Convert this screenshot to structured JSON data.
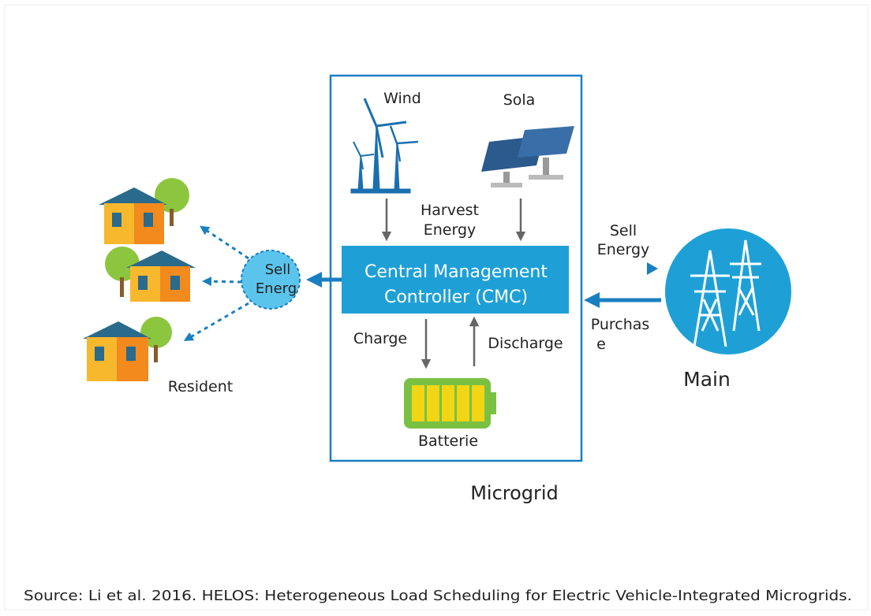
{
  "diagram": {
    "wind": "Wind",
    "solar": "Sola",
    "harvest": [
      "Harvest",
      "Energy"
    ],
    "cmc": [
      "Central Management",
      "Controller (CMC)"
    ],
    "charge": "Charge",
    "discharge": "Discharge",
    "battery": "Batterie",
    "microgrid": "Microgrid",
    "sell_residents": [
      "Sell",
      "Energ"
    ],
    "residents": "Resident",
    "sell_main": [
      "Sell",
      "Energy"
    ],
    "purchase": [
      "Purchas",
      "e"
    ],
    "main": "Main",
    "source": "Source: Li et al. 2016. HELOS: Heterogeneous Load Scheduling for Electric Vehicle-Integrated Microgrids."
  }
}
